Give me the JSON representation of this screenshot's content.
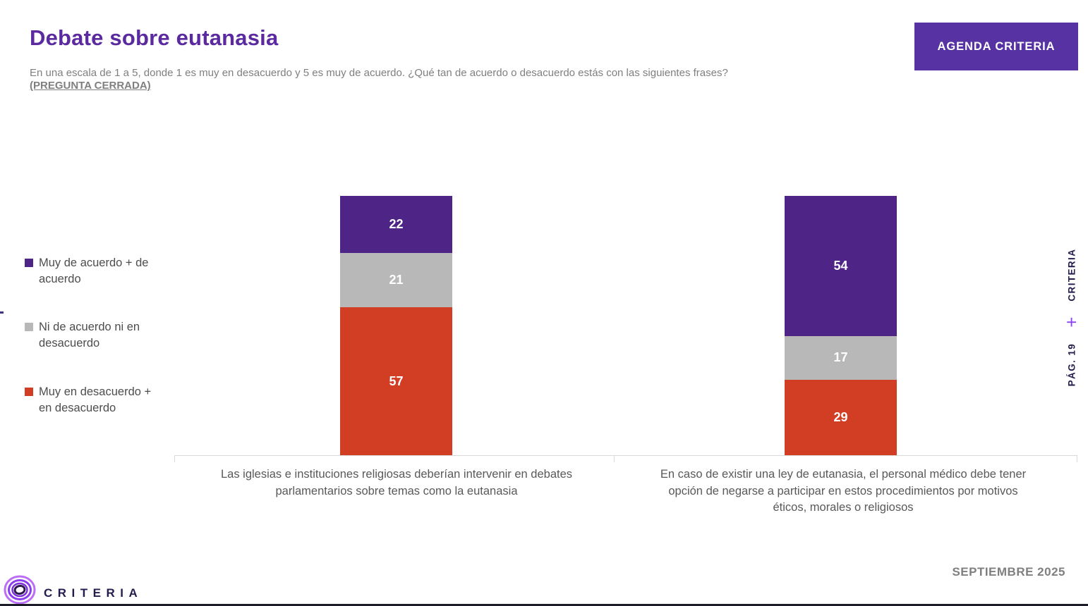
{
  "header": {
    "title": "Debate sobre eutanasia",
    "subtitle": "En una escala de 1 a 5, donde 1 es muy en desacuerdo y 5 es muy de acuerdo. ¿Qué tan de acuerdo o desacuerdo estás con las siguientes frases?",
    "subtitle_tag": "(PREGUNTA CERRADA)",
    "button_label": "AGENDA CRITERIA"
  },
  "chart_data": {
    "type": "bar",
    "variant": "stacked-vertical-percent",
    "title": "Debate sobre eutanasia",
    "categories": [
      "Las iglesias e instituciones religiosas deberían intervenir en debates parlamentarios sobre temas como la eutanasia",
      "En caso de existir una ley de eutanasia, el personal médico debe tener opción de negarse a participar en estos procedimientos por motivos éticos, morales o religiosos"
    ],
    "series": [
      {
        "name": "Muy de acuerdo + de acuerdo",
        "color": "#4e2487",
        "values": [
          22,
          54
        ]
      },
      {
        "name": "Ni de acuerdo ni en desacuerdo",
        "color": "#b9b8b9",
        "values": [
          21,
          17
        ]
      },
      {
        "name": "Muy en desacuerdo + en desacuerdo",
        "color": "#d23e23",
        "values": [
          57,
          29
        ]
      }
    ],
    "stack_order_top_to_bottom": [
      "Muy de acuerdo + de acuerdo",
      "Ni de acuerdo ni en desacuerdo",
      "Muy en desacuerdo + en desacuerdo"
    ],
    "ylim": [
      0,
      100
    ],
    "value_labels": true,
    "value_label_color": "#ffffff",
    "legend_position": "left",
    "grid": false,
    "axis_line_color": "#d9d9d9"
  },
  "side_strip": {
    "brand": "CRITERIA",
    "plus": "+",
    "page": "PÁG. 19"
  },
  "footer": {
    "date": "SEPTIEMBRE 2025",
    "brand": "CRITERIA"
  },
  "colors": {
    "title": "#5b2aa0",
    "button_bg": "#5632a3",
    "subtitle_text": "#7f7f7f",
    "legend_text": "#4d4d4d",
    "axis_label_text": "#595959",
    "side_text": "#251c4d",
    "side_plus": "#8b45f5"
  }
}
